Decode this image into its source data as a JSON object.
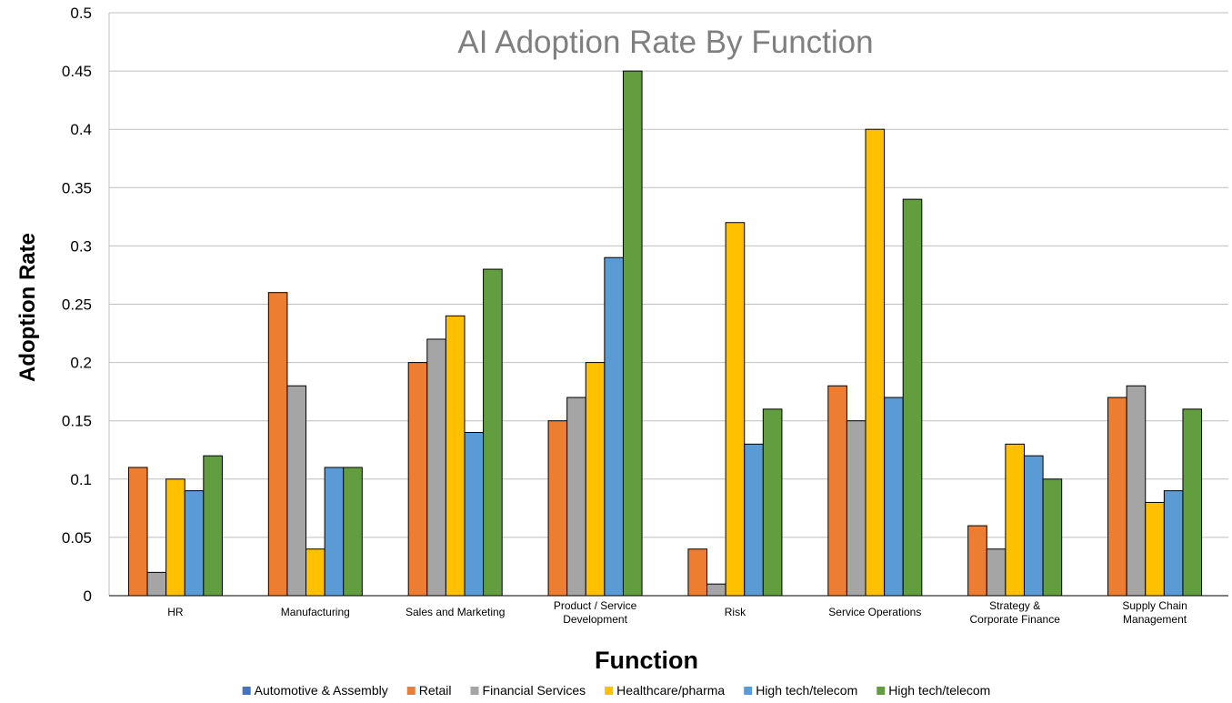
{
  "chart_data": {
    "type": "bar",
    "title": "AI Adoption Rate By Function",
    "xlabel": "Function",
    "ylabel": "Adoption Rate",
    "ylim": [
      0,
      0.5
    ],
    "yticks": [
      "0",
      "0.05",
      "0.1",
      "0.15",
      "0.2",
      "0.25",
      "0.3",
      "0.35",
      "0.4",
      "0.45",
      "0.5"
    ],
    "grid": true,
    "legend_position": "bottom",
    "categories": [
      [
        "HR"
      ],
      [
        "Manufacturing"
      ],
      [
        "Sales and Marketing"
      ],
      [
        "Product / Service",
        "Development"
      ],
      [
        "Risk"
      ],
      [
        "Service Operations"
      ],
      [
        "Strategy &",
        "Corporate Finance"
      ],
      [
        "Supply Chain",
        "Management"
      ]
    ],
    "legend_only": [
      {
        "name": "Automotive & Assembly",
        "color": "#4472c4"
      }
    ],
    "series": [
      {
        "name": "Retail",
        "color": "#ed7d31",
        "values": [
          0.11,
          0.26,
          0.2,
          0.15,
          0.04,
          0.18,
          0.06,
          0.17
        ]
      },
      {
        "name": "Financial Services",
        "color": "#a5a5a5",
        "values": [
          0.02,
          0.18,
          0.22,
          0.17,
          0.01,
          0.15,
          0.04,
          0.18
        ]
      },
      {
        "name": "Healthcare/pharma",
        "color": "#ffc000",
        "values": [
          0.1,
          0.04,
          0.24,
          0.2,
          0.32,
          0.4,
          0.13,
          0.08
        ]
      },
      {
        "name": "High tech/telecom",
        "color": "#5b9bd5",
        "values": [
          0.09,
          0.11,
          0.14,
          0.29,
          0.13,
          0.17,
          0.12,
          0.09
        ]
      },
      {
        "name": "High tech/telecom",
        "color": "#629d3f",
        "values": [
          0.12,
          0.11,
          0.28,
          0.45,
          0.16,
          0.34,
          0.1,
          0.16
        ]
      }
    ]
  }
}
